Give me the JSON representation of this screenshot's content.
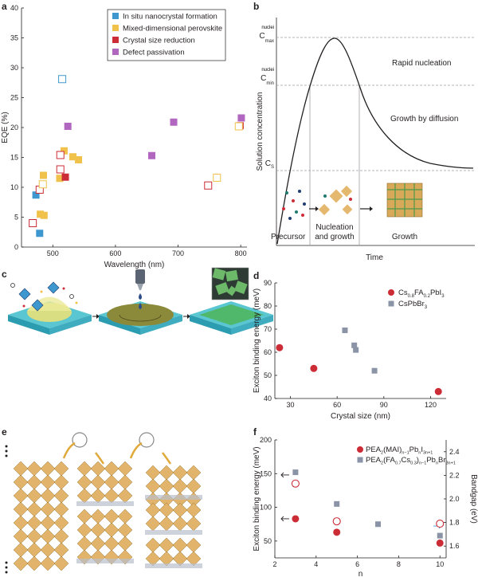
{
  "colors": {
    "in_situ": "#3f97cf",
    "mixed": "#f0c24b",
    "crystal": "#cc2c36",
    "defect": "#b167c0",
    "grey": "#8a94a6",
    "red": "#cc2c36"
  },
  "panels": {
    "a": "a",
    "b": "b",
    "c": "c",
    "d": "d",
    "e": "e",
    "f": "f"
  },
  "panel_b": {
    "cmax": "C",
    "cmax_sup": "nuclei",
    "cmax_sub": "max",
    "cmin": "C",
    "cmin_sup": "nuclei",
    "cmin_sub": "min",
    "cs": "C",
    "cs_sub": "S",
    "ylabel": "Solution concentration",
    "xlabel": "Time",
    "rapid": "Rapid nucleation",
    "growth_diff": "Growth by diffusion",
    "precursor": "Precursor",
    "nucleation1": "Nucleation",
    "nucleation2": "and growth",
    "growth": "Growth"
  },
  "chart_data": [
    {
      "panel": "a",
      "type": "scatter",
      "xlabel": "Wavelength (nm)",
      "ylabel": "EQE (%)",
      "xlim": [
        450,
        810
      ],
      "ylim": [
        0,
        40
      ],
      "xticks": [
        "500",
        "600",
        "700",
        "800"
      ],
      "yticks": [
        "0",
        "5",
        "10",
        "15",
        "20",
        "25",
        "30",
        "35",
        "40"
      ],
      "legend_position": "top-right",
      "series": [
        {
          "name": "In situ nanocrystal formation",
          "color_key": "in_situ",
          "points": [
            [
              473,
              8.7
            ],
            [
              479,
              2.3
            ]
          ]
        },
        {
          "name": "Mixed-dimensional perovskite",
          "color_key": "mixed",
          "points": [
            [
              480,
              5.5
            ],
            [
              486,
              5.3
            ],
            [
              485,
              12.0
            ],
            [
              518,
              16.1
            ],
            [
              532,
              15.1
            ],
            [
              541,
              14.6
            ],
            [
              511,
              11.5
            ]
          ]
        },
        {
          "name": "Crystal size reduction",
          "color_key": "crystal",
          "points": [
            [
              520,
              11.7
            ],
            [
              799,
              20.3
            ]
          ]
        },
        {
          "name": "Defect passivation",
          "color_key": "defect",
          "points": [
            [
              524,
              20.2
            ],
            [
              658,
              15.3
            ],
            [
              693,
              20.9
            ],
            [
              801,
              21.6
            ]
          ]
        }
      ],
      "open_markers": [
        {
          "color_key": "in_situ",
          "points": [
            [
              515,
              28.1
            ]
          ]
        },
        {
          "color_key": "crystal",
          "points": [
            [
              468,
              4.0
            ],
            [
              479,
              9.6
            ],
            [
              512,
              13.0
            ],
            [
              512,
              15.4
            ],
            [
              748,
              10.3
            ]
          ]
        },
        {
          "color_key": "mixed",
          "points": [
            [
              484,
              10.5
            ],
            [
              762,
              11.6
            ],
            [
              797,
              20.2
            ]
          ]
        }
      ]
    },
    {
      "panel": "d",
      "type": "scatter",
      "xlabel": "Crystal size (nm)",
      "ylabel": "Exciton binding energy (meV)",
      "xlim": [
        20,
        130
      ],
      "ylim": [
        40,
        90
      ],
      "xticks": [
        "30",
        "60",
        "90",
        "120"
      ],
      "yticks": [
        "40",
        "50",
        "60",
        "70",
        "80",
        "90"
      ],
      "legend_position": "top-right",
      "series": [
        {
          "name": "Cs0.8FA0.2PbI3",
          "name_base": [
            "Cs",
            "FA",
            "PbI"
          ],
          "name_subs": [
            "0.8",
            "0.2",
            "3"
          ],
          "color_key": "red",
          "marker": "circle",
          "points": [
            [
              23,
              62
            ],
            [
              45,
              53
            ],
            [
              125,
              43
            ]
          ]
        },
        {
          "name": "CsPbBr3",
          "name_base": [
            "CsPbBr"
          ],
          "name_subs": [
            "3"
          ],
          "color_key": "grey",
          "marker": "square",
          "points": [
            [
              65,
              69.5
            ],
            [
              71,
              63
            ],
            [
              72,
              61
            ],
            [
              84,
              52
            ]
          ]
        }
      ]
    },
    {
      "panel": "f",
      "type": "scatter",
      "xlabel": "n",
      "ylabel": "Exciton binding energy (meV)",
      "y2label": "Bandgap (eV)",
      "xlim": [
        2,
        10.3
      ],
      "ylim": [
        25,
        200
      ],
      "y2lim": [
        1.5,
        2.5
      ],
      "xticks": [
        "2",
        "4",
        "6",
        "8",
        "10"
      ],
      "yticks": [
        "50",
        "100",
        "150",
        "200"
      ],
      "y2ticks": [
        "1.6",
        "1.8",
        "2.0",
        "2.2",
        "2.4"
      ],
      "legend_position": "top-right",
      "series": [
        {
          "name": "PEA2(MAI)n-1PbnI3n+1",
          "color_key": "red",
          "marker": "circle",
          "axis": "left",
          "points": [
            [
              3,
              83
            ],
            [
              5,
              63
            ],
            [
              10,
              47
            ]
          ]
        },
        {
          "name": "PEA2(FA0.7Cs0.3)n-1PbnBr3n+1",
          "color_key": "grey",
          "marker": "square",
          "axis": "left",
          "points": [
            [
              3,
              152
            ],
            [
              5,
              105
            ],
            [
              7,
              75
            ],
            [
              10,
              58
            ]
          ]
        },
        {
          "name": "Bandgap PEA2(MAI)n-1PbnI3n+1",
          "color_key": "red",
          "marker": "open-circle",
          "axis": "right",
          "points": [
            [
              3,
              2.13
            ],
            [
              5,
              1.81
            ],
            [
              10,
              1.79
            ]
          ]
        }
      ],
      "legend_f": {
        "l1": [
          "PEA",
          "2",
          "(MAI)",
          "n−1",
          "Pb",
          "n",
          "I",
          "3n+1"
        ],
        "l2": [
          "PEA",
          "2",
          "(FA",
          "0.7",
          "Cs",
          "0.3",
          ")",
          "n−1",
          "Pb",
          "n",
          "Br",
          "3n+1"
        ]
      }
    }
  ]
}
